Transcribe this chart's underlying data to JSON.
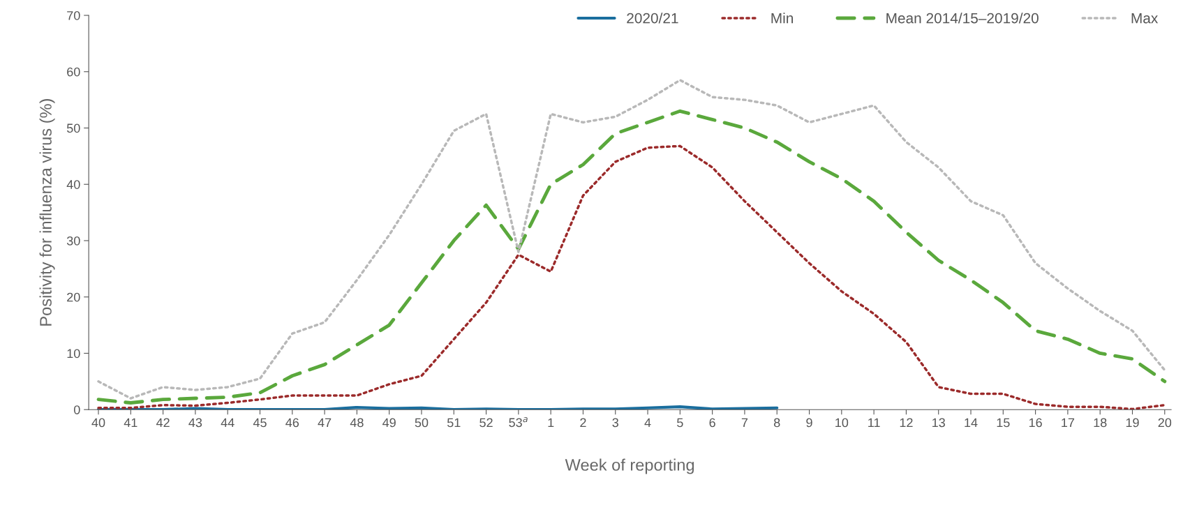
{
  "chart_data": {
    "type": "line",
    "xlabel": "Week of reporting",
    "ylabel": "Positivity for influenza virus (%)",
    "categories": [
      "40",
      "41",
      "42",
      "43",
      "44",
      "45",
      "46",
      "47",
      "48",
      "49",
      "50",
      "51",
      "52",
      "53$^{a}$",
      "1",
      "2",
      "3",
      "4",
      "5",
      "6",
      "7",
      "8",
      "9",
      "10",
      "11",
      "12",
      "13",
      "14",
      "15",
      "16",
      "17",
      "18",
      "19",
      "20"
    ],
    "ylim": [
      0,
      70
    ],
    "yticks": [
      0,
      10,
      20,
      30,
      40,
      50,
      60,
      70
    ],
    "grid": false,
    "legend": "top",
    "marker": "none",
    "series": [
      {
        "name": "2020/21",
        "color": "#1a6e9e",
        "line_style": "solid",
        "values": [
          0,
          0,
          0,
          0.2,
          0,
          0,
          0,
          0,
          0.4,
          0.2,
          0.3,
          0,
          0.1,
          0,
          0,
          0.1,
          0.1,
          0.3,
          0.5,
          0.1,
          0.2,
          0.3,
          null,
          null,
          null,
          null,
          null,
          null,
          null,
          null,
          null,
          null,
          null,
          null
        ]
      },
      {
        "name": "Min",
        "color": "#9b2a2a",
        "line_style": "dotted",
        "values": [
          0.3,
          0.3,
          0.8,
          0.7,
          1.2,
          1.8,
          2.5,
          2.5,
          2.5,
          4.5,
          6,
          12.5,
          19,
          27.5,
          24.5,
          38,
          44,
          46.5,
          46.8,
          43,
          37,
          31.5,
          26,
          21,
          17,
          12,
          4,
          2.8,
          2.8,
          1,
          0.5,
          0.5,
          0.1,
          0.8
        ]
      },
      {
        "name": "Mean 2014/15–2019/20",
        "color": "#5aa83c",
        "line_style": "dashed",
        "values": [
          1.8,
          1.2,
          1.8,
          2,
          2.2,
          3,
          6,
          8,
          11.5,
          15,
          22.5,
          30,
          36.3,
          28.5,
          40,
          43.5,
          49,
          51,
          53,
          51.5,
          50,
          47.5,
          44,
          41,
          37,
          31.5,
          26.5,
          23,
          19,
          14,
          12.5,
          10,
          9,
          5
        ]
      },
      {
        "name": "Max",
        "color": "#b8b8b8",
        "line_style": "dotted",
        "values": [
          5,
          2,
          4,
          3.5,
          4,
          5.5,
          13.5,
          15.5,
          23,
          31,
          40,
          49.5,
          52.5,
          28,
          52.5,
          51,
          52,
          55,
          58.5,
          55.5,
          55,
          54,
          51,
          52.5,
          54,
          47.5,
          43,
          37,
          34.5,
          26,
          21.5,
          17.5,
          14,
          7
        ]
      }
    ]
  }
}
